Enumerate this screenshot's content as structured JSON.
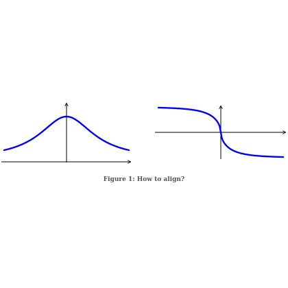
{
  "caption": {
    "label": "Figure 1:",
    "text": "How to align?"
  },
  "colors": {
    "curve": "#0000ff",
    "axis": "#000000",
    "caption": "#555555"
  },
  "chart_data": [
    {
      "type": "line",
      "title": "",
      "xlabel": "",
      "ylabel": "",
      "xlim": [
        -2,
        2
      ],
      "ylim": [
        0,
        1.1
      ],
      "grid": false,
      "series": [
        {
          "function": "1/(1+x^2)",
          "x": [
            -1.9,
            -1.5,
            -1.0,
            -0.5,
            0,
            0.5,
            1.0,
            1.5,
            1.9
          ],
          "values": [
            0.22,
            0.31,
            0.5,
            0.8,
            1.0,
            0.8,
            0.5,
            0.31,
            0.22
          ]
        }
      ]
    },
    {
      "type": "line",
      "title": "",
      "xlabel": "",
      "ylabel": "",
      "xlim": [
        -2,
        2
      ],
      "ylim": [
        -1.1,
        1.1
      ],
      "grid": false,
      "series": [
        {
          "function": "-x^3 / (|x|^3 + 0.3) style sigmoid",
          "x": [
            -1.9,
            -1.0,
            -0.5,
            0,
            0.5,
            1.0,
            1.9
          ],
          "values": [
            0.92,
            0.75,
            0.4,
            0.0,
            -0.4,
            -0.75,
            -0.92
          ]
        }
      ]
    }
  ]
}
